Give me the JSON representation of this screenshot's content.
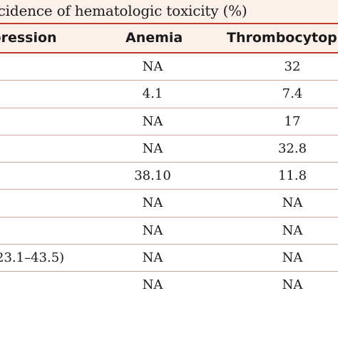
{
  "table": {
    "title": "ncidence of hematologic toxicity (%)",
    "headers": {
      "suppression": "pression",
      "anemia": "Anemia",
      "thrombocytopenia": "Thrombocytop"
    },
    "rows": [
      {
        "suppression": "",
        "anemia": "NA",
        "thrombocytopenia": "32"
      },
      {
        "suppression": "",
        "anemia": "4.1",
        "thrombocytopenia": "7.4"
      },
      {
        "suppression": "",
        "anemia": "NA",
        "thrombocytopenia": "17"
      },
      {
        "suppression": "",
        "anemia": "NA",
        "thrombocytopenia": "32.8"
      },
      {
        "suppression": "",
        "anemia": "38.10",
        "thrombocytopenia": "11.8"
      },
      {
        "suppression": "",
        "anemia": "NA",
        "thrombocytopenia": "NA"
      },
      {
        "suppression": "",
        "anemia": "NA",
        "thrombocytopenia": "NA"
      },
      {
        "suppression": "23.1–43.5)",
        "anemia": "NA",
        "thrombocytopenia": "NA"
      },
      {
        "suppression": "",
        "anemia": "NA",
        "thrombocytopenia": "NA"
      }
    ]
  },
  "colors": {
    "header_bg": "#fbf1ea",
    "rule": "#c0392b",
    "row_divider": "#d4a79a"
  }
}
